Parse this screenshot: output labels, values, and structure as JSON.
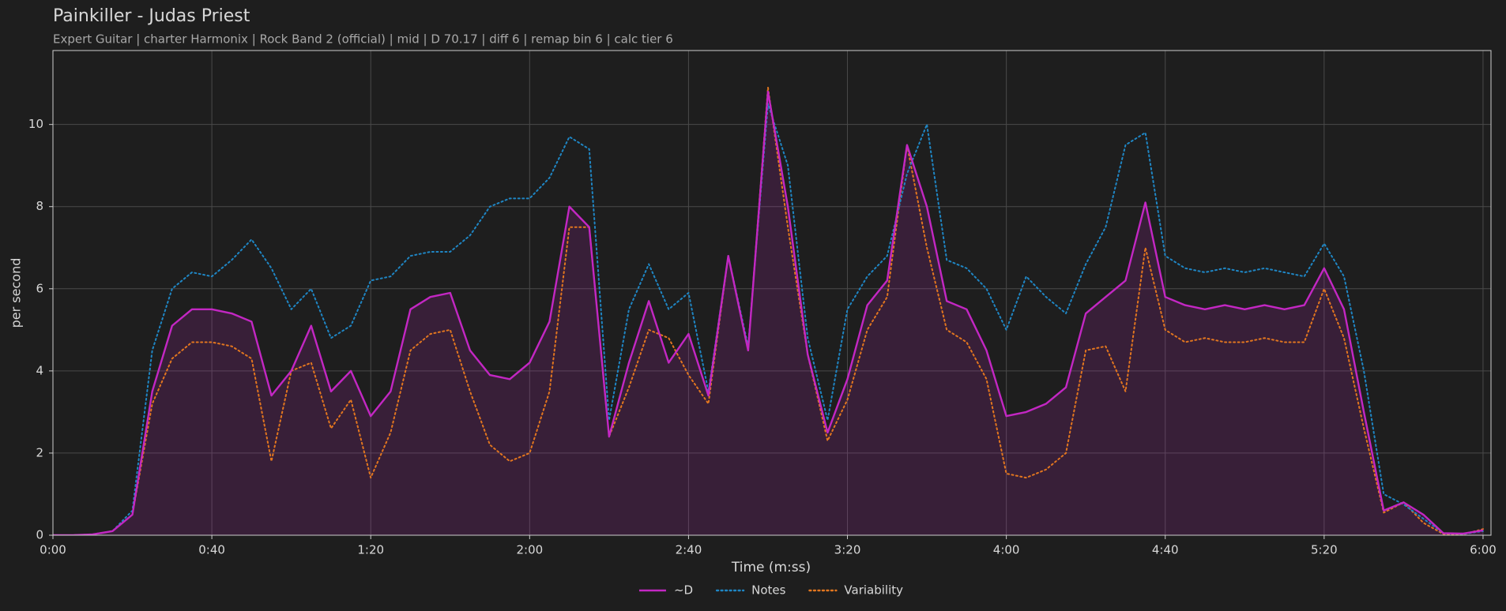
{
  "chart_data": {
    "type": "line",
    "title": "Painkiller - Judas Priest",
    "subtitle": "Expert Guitar  |  charter Harmonix  |  Rock Band 2 (official)  |  mid  |  D 70.17  |  diff 6  |  remap bin 6  |  calc tier 6",
    "x_label": "Time (m:ss)",
    "y_label": "per second",
    "x": [
      0,
      5,
      10,
      15,
      20,
      25,
      30,
      35,
      40,
      45,
      50,
      55,
      60,
      65,
      70,
      75,
      80,
      85,
      90,
      95,
      100,
      105,
      110,
      115,
      120,
      125,
      130,
      135,
      140,
      145,
      150,
      155,
      160,
      165,
      170,
      175,
      180,
      185,
      190,
      195,
      200,
      205,
      210,
      215,
      220,
      225,
      230,
      235,
      240,
      245,
      250,
      255,
      260,
      265,
      270,
      275,
      280,
      285,
      290,
      295,
      300,
      305,
      310,
      315,
      320,
      325,
      330,
      335,
      340,
      345,
      350,
      355,
      360
    ],
    "series": [
      {
        "name": "~D",
        "color": "#c327c3",
        "style": "solid",
        "fill": true,
        "values": [
          0,
          0,
          0.02,
          0.1,
          0.5,
          3.5,
          5.1,
          5.5,
          5.5,
          5.4,
          5.2,
          3.4,
          4.0,
          5.1,
          3.5,
          4.0,
          2.9,
          3.5,
          5.5,
          5.8,
          5.9,
          4.5,
          3.9,
          3.8,
          4.2,
          5.2,
          8,
          7.5,
          2.4,
          4.2,
          5.7,
          4.2,
          4.9,
          3.4,
          6.8,
          4.5,
          10.8,
          8,
          4.4,
          2.5,
          3.8,
          5.6,
          6.2,
          9.5,
          8.0,
          5.7,
          5.5,
          4.5,
          2.9,
          3.0,
          3.2,
          3.6,
          5.4,
          5.8,
          6.2,
          8.1,
          5.8,
          5.6,
          5.5,
          5.6,
          5.5,
          5.6,
          5.5,
          5.6,
          6.5,
          5.5,
          3.0,
          0.6,
          0.8,
          0.5,
          0.05,
          0.04,
          0.12
        ]
      },
      {
        "name": "Notes",
        "color": "#1f86c4",
        "style": "dotted",
        "fill": false,
        "values": [
          0,
          0,
          0.02,
          0.1,
          0.6,
          4.5,
          6.0,
          6.4,
          6.3,
          6.7,
          7.2,
          6.5,
          5.5,
          6.0,
          4.8,
          5.1,
          6.2,
          6.3,
          6.8,
          6.9,
          6.9,
          7.3,
          8.0,
          8.2,
          8.2,
          8.7,
          9.7,
          9.4,
          2.8,
          5.5,
          6.6,
          5.5,
          5.9,
          3.5,
          6.8,
          4.6,
          10.5,
          9.0,
          4.8,
          2.8,
          5.5,
          6.3,
          6.8,
          8.8,
          10.0,
          6.7,
          6.5,
          6.0,
          5.0,
          6.3,
          5.8,
          5.4,
          6.6,
          7.5,
          9.5,
          9.8,
          6.8,
          6.5,
          6.4,
          6.5,
          6.4,
          6.5,
          6.4,
          6.3,
          7.1,
          6.3,
          4.0,
          1.0,
          0.75,
          0.4,
          0.05,
          0.03,
          0.1
        ]
      },
      {
        "name": "Variability",
        "color": "#e2761f",
        "style": "dotted",
        "fill": false,
        "values": [
          0,
          0,
          0.02,
          0.1,
          0.5,
          3.2,
          4.3,
          4.7,
          4.7,
          4.6,
          4.3,
          1.8,
          4.0,
          4.2,
          2.6,
          3.3,
          1.4,
          2.5,
          4.5,
          4.9,
          5.0,
          3.5,
          2.2,
          1.8,
          2.0,
          3.5,
          7.5,
          7.5,
          2.4,
          3.6,
          5.0,
          4.8,
          3.9,
          3.2,
          6.8,
          4.5,
          10.9,
          7.5,
          4.4,
          2.3,
          3.3,
          5.0,
          5.8,
          9.5,
          7.0,
          5.0,
          4.7,
          3.8,
          1.5,
          1.4,
          1.6,
          2.0,
          4.5,
          4.6,
          3.5,
          7.0,
          5.0,
          4.7,
          4.8,
          4.7,
          4.7,
          4.8,
          4.7,
          4.7,
          6.0,
          4.8,
          2.6,
          0.55,
          0.8,
          0.3,
          0.03,
          0.02,
          0.15
        ]
      }
    ],
    "xlim": [
      0,
      362
    ],
    "xticks": [
      {
        "value": 0,
        "label": "0:00"
      },
      {
        "value": 40,
        "label": "0:40"
      },
      {
        "value": 80,
        "label": "1:20"
      },
      {
        "value": 120,
        "label": "2:00"
      },
      {
        "value": 160,
        "label": "2:40"
      },
      {
        "value": 200,
        "label": "3:20"
      },
      {
        "value": 240,
        "label": "4:00"
      },
      {
        "value": 280,
        "label": "4:40"
      },
      {
        "value": 320,
        "label": "5:20"
      },
      {
        "value": 360,
        "label": "6:00"
      }
    ],
    "ylim": [
      0,
      11.8
    ],
    "yticks": [
      0,
      2,
      4,
      6,
      8,
      10
    ],
    "grid": true,
    "legend": "bottom"
  }
}
